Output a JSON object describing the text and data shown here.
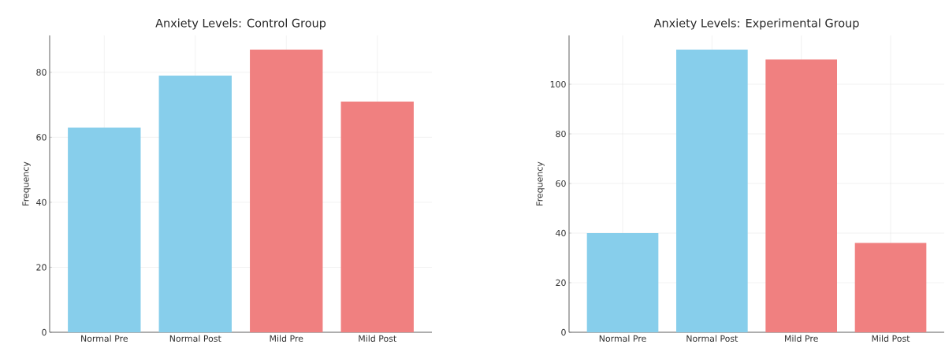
{
  "chart_data": [
    {
      "type": "bar",
      "title": "Anxiety Levels: Control Group",
      "ylabel": "Frequency",
      "categories": [
        "Normal Pre",
        "Normal Post",
        "Mild Pre",
        "Mild Post"
      ],
      "values": [
        63,
        79,
        87,
        71
      ],
      "colors": [
        "#87ceeb",
        "#87ceeb",
        "#f08080",
        "#f08080"
      ],
      "ylim": [
        0,
        91.35
      ],
      "yticks": [
        0,
        20,
        40,
        60,
        80
      ],
      "grid": true
    },
    {
      "type": "bar",
      "title": "Anxiety Levels: Experimental Group",
      "ylabel": "Frequency",
      "categories": [
        "Normal Pre",
        "Normal Post",
        "Mild Pre",
        "Mild Post"
      ],
      "values": [
        40,
        114,
        110,
        36
      ],
      "colors": [
        "#87ceeb",
        "#87ceeb",
        "#f08080",
        "#f08080"
      ],
      "ylim": [
        0,
        119.7
      ],
      "yticks": [
        0,
        20,
        40,
        60,
        80,
        100
      ],
      "grid": true
    }
  ]
}
